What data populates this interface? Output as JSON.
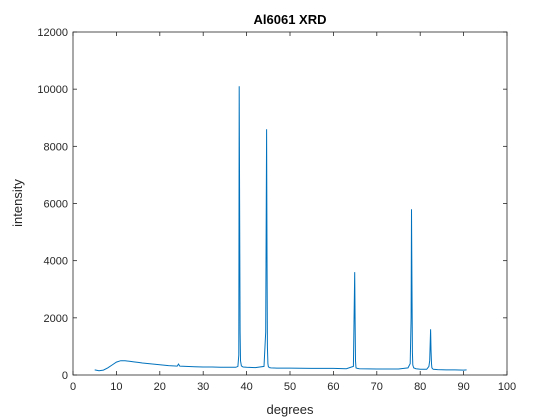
{
  "chart_data": {
    "type": "line",
    "title": "Al6061 XRD",
    "xlabel": "degrees",
    "ylabel": "intensity",
    "xlim": [
      0,
      100
    ],
    "ylim": [
      0,
      12000
    ],
    "xticks": [
      "0",
      "10",
      "20",
      "30",
      "40",
      "50",
      "60",
      "70",
      "80",
      "90",
      "100"
    ],
    "yticks": [
      "0",
      "2000",
      "4000",
      "6000",
      "8000",
      "10000",
      "12000"
    ],
    "grid": false,
    "legend": "none",
    "colors": {
      "line": "#0072bd",
      "axes": "#262626"
    },
    "series": [
      {
        "values_x": [
          5,
          6,
          7,
          8,
          9,
          10,
          11,
          12,
          13,
          14,
          15,
          16,
          18,
          20,
          22,
          24,
          24.3,
          24.6,
          26,
          28,
          30,
          32,
          34,
          36,
          37.5,
          38.0,
          38.2,
          38.3,
          38.4,
          38.5,
          38.6,
          38.8,
          39.2,
          40,
          42,
          44.0,
          44.4,
          44.6,
          44.7,
          44.8,
          44.9,
          45.0,
          45.2,
          45.6,
          47,
          50,
          55,
          60,
          63,
          64.6,
          64.9,
          65.0,
          65.1,
          65.2,
          65.5,
          66,
          70,
          75,
          77.2,
          77.7,
          77.9,
          78.0,
          78.1,
          78.2,
          78.3,
          78.5,
          79,
          80,
          81.5,
          82.0,
          82.2,
          82.4,
          82.5,
          82.6,
          82.7,
          83,
          84,
          86,
          88,
          90,
          90.7
        ],
        "values_y": [
          180,
          150,
          170,
          250,
          350,
          450,
          500,
          500,
          480,
          460,
          440,
          420,
          390,
          360,
          330,
          310,
          380,
          310,
          300,
          290,
          280,
          280,
          270,
          270,
          270,
          300,
          700,
          10100,
          5200,
          1500,
          500,
          320,
          280,
          270,
          260,
          300,
          1500,
          8600,
          4300,
          1000,
          400,
          300,
          260,
          250,
          240,
          240,
          230,
          230,
          220,
          300,
          3600,
          1900,
          500,
          250,
          230,
          220,
          210,
          210,
          250,
          400,
          2000,
          5800,
          2900,
          800,
          350,
          250,
          220,
          200,
          200,
          300,
          500,
          1600,
          900,
          400,
          250,
          200,
          190,
          180,
          180,
          170,
          180
        ]
      }
    ]
  }
}
